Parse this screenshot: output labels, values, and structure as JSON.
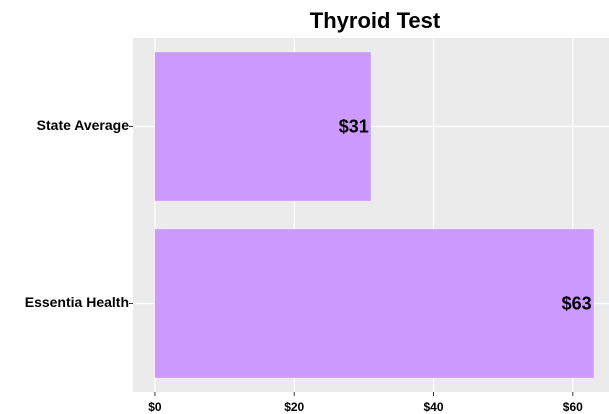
{
  "chart_data": {
    "type": "barh",
    "title": "Thyroid Test",
    "categories": [
      "State Average",
      "Essentia Health"
    ],
    "values": [
      31,
      63
    ],
    "value_labels": [
      "$31",
      "$63"
    ],
    "color": "#cc99ff",
    "xlim": [
      -3.15,
      65.2
    ],
    "xticks": [
      {
        "value": 0,
        "label": "$0"
      },
      {
        "value": 20,
        "label": "$20"
      },
      {
        "value": 40,
        "label": "$40"
      },
      {
        "value": 60,
        "label": "$60"
      }
    ],
    "grid": true
  }
}
